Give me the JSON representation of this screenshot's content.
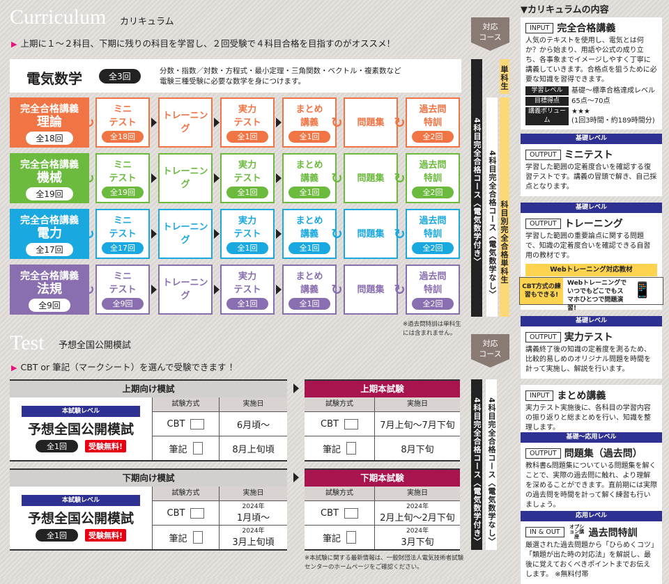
{
  "curriculum": {
    "title": "Curriculum",
    "subtitle": "カリキュラム",
    "lead": "上期に１～２科目、下期に残りの科目を学習し、２回受験で４科目合格を目指すのがオススメ！",
    "course_tag": "対応\nコース",
    "math": {
      "name": "電気数学",
      "count": "全3回",
      "desc1": "分数・指数／対数・方程式・最小定理・三角関数・ベクトル・複素数など",
      "desc2": "電験三種受験に必要な数学を身につけます。"
    },
    "course_label": "完全合格講義",
    "steps": [
      [
        "ミニ",
        "テスト"
      ],
      [
        "トレーニング"
      ],
      [
        "実力",
        "テスト"
      ],
      [
        "まとめ",
        "講義"
      ],
      [
        "問題集"
      ],
      [
        "過去問",
        "特訓"
      ]
    ],
    "subjects": [
      {
        "name": "理論",
        "count": "全18回",
        "color": "#f07444",
        "badges": [
          "全18回",
          null,
          "全1回",
          "全1回",
          null,
          "全2回"
        ]
      },
      {
        "name": "機械",
        "count": "全19回",
        "color": "#6cba3e",
        "badges": [
          "全19回",
          null,
          "全1回",
          "全1回",
          null,
          "全2回"
        ]
      },
      {
        "name": "電力",
        "count": "全17回",
        "color": "#1aa8e0",
        "badges": [
          "全17回",
          null,
          "全1回",
          "全1回",
          null,
          "全2回"
        ]
      },
      {
        "name": "法規",
        "count": "全9回",
        "color": "#8a6fb0",
        "badges": [
          "全9回",
          null,
          "全1回",
          "全1回",
          null,
          "全2回"
        ]
      }
    ],
    "bars": {
      "with_math": "4科目完全合格コース〈電気数学付き〉",
      "no_math": "4科目完全合格コース〈電気数学なし〉",
      "single_short": "単科生",
      "single": "科目別完全合格単科生"
    },
    "note": "※過去問特訓は単科生には含まれません。"
  },
  "test": {
    "title": "Test",
    "subtitle": "予想全国公開模試",
    "lead": "CBT or 筆記（マークシート）を選んで受験できます ！",
    "course_tag": "対応\nコース",
    "col_method": "試験方式",
    "col_date": "実施日",
    "mock_level": "本試験レベル",
    "mock_name": "予想全国公開模試",
    "mock_count": "全1回",
    "mock_free": "受験無料!",
    "mocks": [
      {
        "heading": "上期向け模試",
        "rows": [
          {
            "method": "CBT",
            "year": "",
            "date": "6月頃～"
          },
          {
            "method": "筆記",
            "year": "",
            "date": "8月上旬頃"
          }
        ]
      },
      {
        "heading": "下期向け模試",
        "rows": [
          {
            "method": "CBT",
            "year": "2024年",
            "date": "1月頃～"
          },
          {
            "method": "筆記",
            "year": "2024年",
            "date": "3月上旬頃"
          }
        ]
      }
    ],
    "exams": [
      {
        "heading": "上期本試験",
        "rows": [
          {
            "method": "CBT",
            "year": "",
            "date": "7月上旬～7月下旬"
          },
          {
            "method": "筆記",
            "year": "",
            "date": "8月下旬"
          }
        ]
      },
      {
        "heading": "下期本試験",
        "rows": [
          {
            "method": "CBT",
            "year": "2024年",
            "date": "2月上旬～2月下旬"
          },
          {
            "method": "筆記",
            "year": "2024年",
            "date": "3月下旬"
          }
        ]
      }
    ],
    "bars": {
      "with_math": "4科目完全合格コース〈電気数学付き〉",
      "no_math": "4科目完全合格コース〈電気数学なし〉"
    },
    "note": "※本試験に関する最新情報は、一般財団法人電気技術者試験センターのホームページをご確認ください。"
  },
  "contents": {
    "heading": "▼カリキュラムの内容",
    "cards": [
      {
        "level": "",
        "io": "INPUT",
        "title": "完全合格講義",
        "body": "人気のテキストを使用し、電気とは何か？から始まり、用語や公式の成り立ち、各事象までイメージしやすく丁寧に講義していきます。合格点を狙うために必要な知識を習得できます。",
        "meta": [
          {
            "k": "学習レベル",
            "v": "基礎～標準合格達成レベル"
          },
          {
            "k": "目標得点",
            "v": "65点～70点"
          },
          {
            "k": "講義ボリューム",
            "v": "★★★\n(1回3時間・約189時間分)"
          }
        ]
      },
      {
        "level": "基礎レベル",
        "io": "OUTPUT",
        "title": "ミニテスト",
        "body": "学習した範囲の定着度合いを確認する復習テストです。講義の冒頭で解き、自己採点となります。"
      },
      {
        "level": "基礎レベル",
        "io": "OUTPUT",
        "title": "トレーニング",
        "body": "学習した範囲の重要論点に関する問題で、知識の定着度合いを確認できる自習用の教材です。",
        "web": "Webトレーニング対応教材"
      },
      {
        "level": "基礎レベル",
        "io": "OUTPUT",
        "title": "実力テスト",
        "body": "講義終了後の知識の定着度を測るため、比較的易しめのオリジナル問題を時間を計って実施し、解説を行います。"
      },
      {
        "level": "",
        "io": "INPUT",
        "title": "まとめ講義",
        "body": "実力テスト実施後に、各科目の学習内容の振り返りと総まとめを行い、知識を整理します。"
      },
      {
        "level": "基礎～応用レベル",
        "io": "OUTPUT",
        "title": "問題集（過去問）",
        "body": "教科書&問題集についている問題集を解くことで、実際の過去問に触れ、より理解を深めることができます。直前期には実際の過去問を時間を計って解く練習も行いましょう。"
      },
      {
        "level": "応用レベル",
        "io": "IN & OUT",
        "option": "オプション講座",
        "title": "過去問特訓",
        "body": "厳選された過去問題から「ひらめくコツ」「類題が出た時の対応法」を解説し、最後に覚えておくべきポイントまでお伝えします。 ※無料付帯"
      }
    ],
    "web_promo": {
      "left": "CBT方式の練習もできる!",
      "right": "Webトレーニングでいつでもどこでもスマホひとつで問題演習!"
    }
  }
}
